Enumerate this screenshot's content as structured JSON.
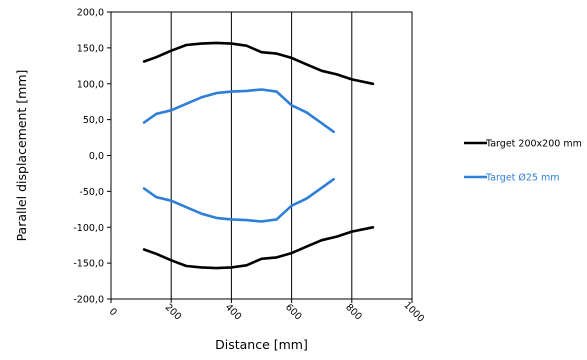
{
  "chart_data": {
    "type": "line",
    "xlabel": "Distance  [mm]",
    "ylabel": "Parallel displacement [mm]",
    "xlim": [
      0,
      1000
    ],
    "ylim": [
      -200,
      200
    ],
    "x_ticks": [
      0,
      200,
      400,
      600,
      800,
      1000
    ],
    "x_tick_labels": [
      "0",
      "200",
      "400",
      "600",
      "800",
      "1000"
    ],
    "y_ticks": [
      -200,
      -150,
      -100,
      -50,
      0,
      50,
      100,
      150,
      200
    ],
    "y_tick_labels": [
      "-200,0",
      "-150,0",
      "-100,0",
      "-50,0",
      "0,0",
      "50,0",
      "100,0",
      "150,0",
      "200,0"
    ],
    "grid": "vertical",
    "legend_position": "right",
    "series": [
      {
        "name": "Target 200x200 mm",
        "color": "#000000",
        "upper": {
          "x": [
            110,
            150,
            200,
            250,
            300,
            350,
            400,
            450,
            500,
            550,
            600,
            650,
            700,
            750,
            800,
            870
          ],
          "y": [
            131,
            137,
            146,
            154,
            156,
            157,
            156,
            153,
            144,
            142,
            136,
            127,
            118,
            113,
            106,
            100
          ]
        },
        "lower": {
          "x": [
            110,
            150,
            200,
            250,
            300,
            350,
            400,
            450,
            500,
            550,
            600,
            650,
            700,
            750,
            800,
            870
          ],
          "y": [
            -131,
            -137,
            -146,
            -154,
            -156,
            -157,
            -156,
            -153,
            -144,
            -142,
            -136,
            -127,
            -118,
            -113,
            -106,
            -100
          ]
        }
      },
      {
        "name": "Target Ø25 mm",
        "color": "#2f7fd8",
        "upper": {
          "x": [
            110,
            150,
            200,
            250,
            300,
            350,
            400,
            450,
            500,
            550,
            600,
            650,
            700,
            740
          ],
          "y": [
            46,
            58,
            63,
            72,
            81,
            87,
            89,
            90,
            92,
            89,
            70,
            60,
            45,
            33
          ]
        },
        "lower": {
          "x": [
            110,
            150,
            200,
            250,
            300,
            350,
            400,
            450,
            500,
            550,
            600,
            650,
            700,
            740
          ],
          "y": [
            -46,
            -58,
            -63,
            -72,
            -81,
            -87,
            -89,
            -90,
            -92,
            -89,
            -70,
            -60,
            -45,
            -33
          ]
        }
      }
    ]
  }
}
